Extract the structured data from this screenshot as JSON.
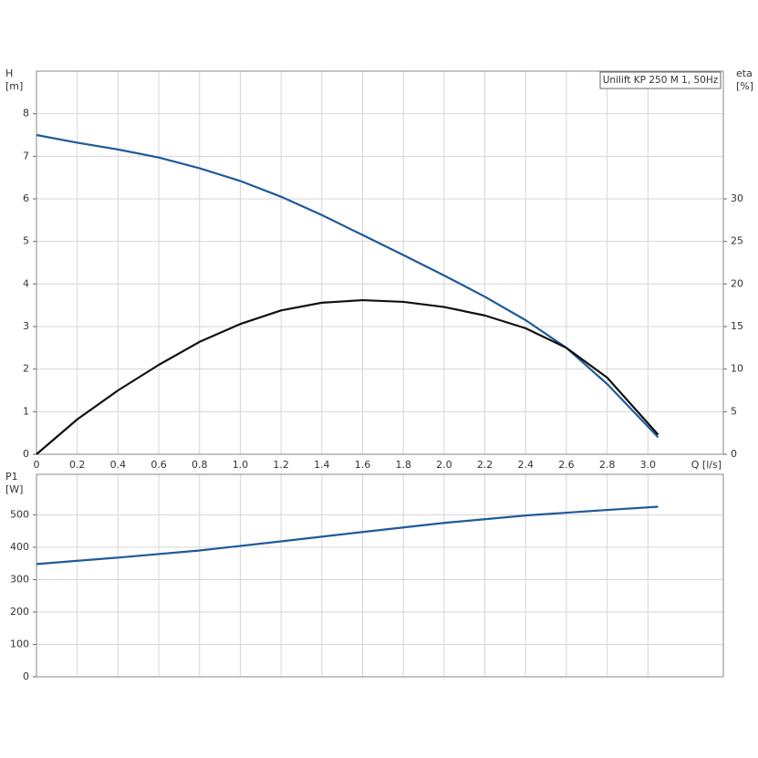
{
  "chart_data": [
    {
      "type": "line",
      "x_label": "Q [l/s]",
      "y_label": "H",
      "y_unit": "[m]",
      "y2_label": "eta",
      "y2_unit": "[%]",
      "annotation": "Unilift KP 250 M 1, 50Hz",
      "xlim": [
        0,
        3.37
      ],
      "xticks": [
        0,
        0.2,
        0.4,
        0.6,
        0.8,
        {
          "value": 1,
          "label": "1.0"
        },
        1.2,
        1.4,
        1.6,
        1.8,
        {
          "value": 2,
          "label": "2.0"
        },
        2.2,
        2.4,
        2.6,
        2.8,
        {
          "value": 3,
          "label": "3.0"
        }
      ],
      "ylim": [
        0,
        9
      ],
      "yticks": [
        0,
        1,
        2,
        3,
        4,
        5,
        6,
        7,
        8
      ],
      "y2lim": [
        0,
        45
      ],
      "y2ticks": [
        0,
        5,
        10,
        15,
        20,
        25,
        30
      ],
      "grid": true,
      "x": [
        0,
        0.2,
        0.4,
        0.6,
        0.8,
        1.0,
        1.2,
        1.4,
        1.6,
        1.8,
        2.0,
        2.2,
        2.4,
        2.6,
        2.8,
        3.05
      ],
      "series": [
        {
          "color": "#1f5a99",
          "values": [
            7.5,
            7.32,
            7.16,
            6.97,
            6.72,
            6.42,
            6.05,
            5.62,
            5.15,
            4.68,
            4.2,
            3.7,
            3.15,
            2.5,
            1.65,
            0.4
          ]
        },
        {
          "color": "#111111",
          "axis": "y2",
          "values": [
            0,
            4.1,
            7.5,
            10.5,
            13.2,
            15.3,
            16.9,
            17.8,
            18.1,
            17.9,
            17.3,
            16.3,
            14.8,
            12.5,
            9.0,
            2.3
          ]
        }
      ]
    },
    {
      "type": "line",
      "y_label": "P1",
      "y_unit": "[W]",
      "xlim": [
        0,
        3.37
      ],
      "ylim": [
        0,
        625
      ],
      "yticks": [
        0,
        100,
        200,
        300,
        400,
        500
      ],
      "grid": true,
      "x": [
        0,
        0.4,
        0.8,
        1.2,
        1.6,
        2.0,
        2.4,
        2.8,
        3.05
      ],
      "series": [
        {
          "color": "#1f5a99",
          "values": [
            348,
            368,
            390,
            418,
            447,
            475,
            498,
            515,
            525
          ]
        }
      ]
    }
  ]
}
